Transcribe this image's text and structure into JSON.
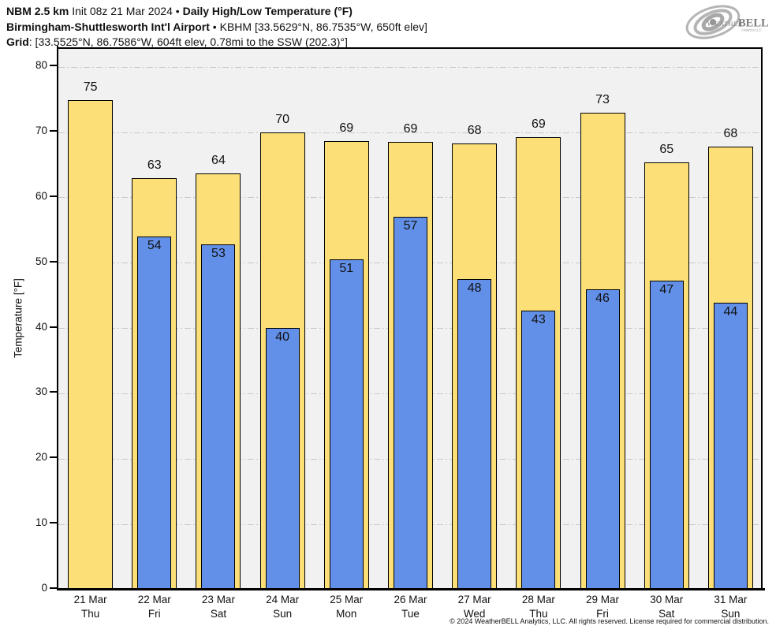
{
  "header": {
    "line1_model": "NBM 2.5 km",
    "line1_init": " Init 08z 21 Mar 2024 • ",
    "line1_title": "Daily High/Low Temperature (°F)",
    "line2_station": "Birmingham-Shuttlesworth Int'l Airport",
    "line2_rest": " • KBHM [33.5629°N, 86.7535°W, 650ft elev]",
    "line3_label": "Grid",
    "line3_rest": ": [33.5525°N, 86.7586°W, 604ft elev, 0.78mi to the SSW (202.3)°]"
  },
  "logo": {
    "brand_weather": "Weather",
    "brand_bell": "BELL",
    "subtext": "Analytics LLC"
  },
  "chart_data": {
    "type": "bar",
    "title": "Daily High/Low Temperature (°F)",
    "xlabel": "",
    "ylabel": "Temperature [°F]",
    "ylim": [
      0,
      82.8
    ],
    "yticks": [
      0,
      10,
      20,
      30,
      40,
      50,
      60,
      70,
      80
    ],
    "grid": "horizontal-dash-dot",
    "legend": "none",
    "plot_background": "#f1f1f1",
    "high_color": "#fcdf76",
    "low_color": "#6290e8",
    "categories": [
      {
        "date": "21 Mar",
        "day": "Thu"
      },
      {
        "date": "22 Mar",
        "day": "Fri"
      },
      {
        "date": "23 Mar",
        "day": "Sat"
      },
      {
        "date": "24 Mar",
        "day": "Sun"
      },
      {
        "date": "25 Mar",
        "day": "Mon"
      },
      {
        "date": "26 Mar",
        "day": "Tue"
      },
      {
        "date": "27 Mar",
        "day": "Wed"
      },
      {
        "date": "28 Mar",
        "day": "Thu"
      },
      {
        "date": "29 Mar",
        "day": "Fri"
      },
      {
        "date": "30 Mar",
        "day": "Sat"
      },
      {
        "date": "31 Mar",
        "day": "Sun"
      }
    ],
    "series": [
      {
        "name": "high",
        "labels": [
          75,
          63,
          64,
          70,
          69,
          69,
          68,
          69,
          73,
          65,
          68
        ],
        "values": [
          75.0,
          63.0,
          63.7,
          70.0,
          68.7,
          68.6,
          68.3,
          69.3,
          73.0,
          65.4,
          67.8
        ]
      },
      {
        "name": "low",
        "labels": [
          null,
          54,
          53,
          40,
          51,
          57,
          48,
          43,
          46,
          47,
          44
        ],
        "values": [
          null,
          54.1,
          52.9,
          40.1,
          50.6,
          57.1,
          47.6,
          42.7,
          46.0,
          47.3,
          43.9
        ]
      }
    ]
  },
  "footer": {
    "copyright": "© 2024 WeatherBELL Analytics, LLC. All rights reserved. License required for commercial distribution."
  }
}
